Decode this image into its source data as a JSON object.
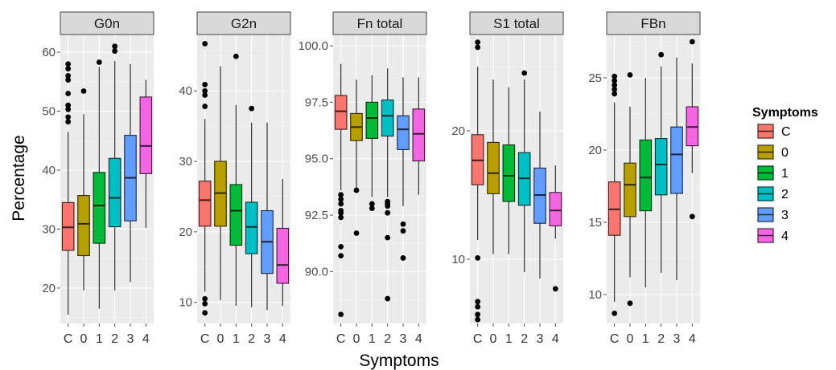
{
  "chart_data": {
    "type": "box",
    "xlabel": "Symptoms",
    "ylabel": "Percentage",
    "categories": [
      "C",
      "0",
      "1",
      "2",
      "3",
      "4"
    ],
    "legend": {
      "title": "Symptoms",
      "position": "right",
      "items": [
        {
          "label": "C",
          "color": "#F8766D"
        },
        {
          "label": "0",
          "color": "#B79F00"
        },
        {
          "label": "1",
          "color": "#00BA38"
        },
        {
          "label": "2",
          "color": "#00BFC4"
        },
        {
          "label": "3",
          "color": "#619CFF"
        },
        {
          "label": "4",
          "color": "#F564E3"
        }
      ]
    },
    "panels": [
      {
        "title": "G0n",
        "ylim": [
          14,
          63
        ],
        "yticks": [
          20,
          30,
          40,
          50,
          60
        ],
        "boxes": [
          {
            "category": "C",
            "min": 15.5,
            "q1": 26.4,
            "median": 30.3,
            "q3": 34.5,
            "max": 46.5,
            "outliers": [
              48.2,
              49.0,
              50.3,
              51.0,
              53.0,
              55.3,
              56.0,
              57.2,
              58.0
            ]
          },
          {
            "category": "0",
            "min": 19.6,
            "q1": 25.5,
            "median": 30.9,
            "q3": 35.7,
            "max": 49.5,
            "outliers": [
              53.4
            ]
          },
          {
            "category": "1",
            "min": 16.5,
            "q1": 27.6,
            "median": 34.0,
            "q3": 39.6,
            "max": 57.5,
            "outliers": [
              58.3
            ]
          },
          {
            "category": "2",
            "min": 19.6,
            "q1": 30.4,
            "median": 35.3,
            "q3": 42.0,
            "max": 58.5,
            "outliers": [
              60.2,
              61.0
            ]
          },
          {
            "category": "3",
            "min": 21.0,
            "q1": 31.4,
            "median": 38.7,
            "q3": 45.9,
            "max": 58.0,
            "outliers": []
          },
          {
            "category": "4",
            "min": 30.2,
            "q1": 39.4,
            "median": 44.1,
            "q3": 52.4,
            "max": 55.3,
            "outliers": []
          }
        ]
      },
      {
        "title": "G2n",
        "ylim": [
          7,
          48
        ],
        "yticks": [
          10,
          20,
          30,
          40
        ],
        "boxes": [
          {
            "category": "C",
            "min": 11.5,
            "q1": 20.8,
            "median": 24.5,
            "q3": 27.2,
            "max": 36.0,
            "outliers": [
              8.5,
              9.8,
              10.5,
              37.8,
              39.4,
              40.0,
              40.9,
              46.7
            ]
          },
          {
            "category": "0",
            "min": 10.3,
            "q1": 20.8,
            "median": 25.5,
            "q3": 30.0,
            "max": 43.5,
            "outliers": []
          },
          {
            "category": "1",
            "min": 9.5,
            "q1": 18.1,
            "median": 23.0,
            "q3": 26.7,
            "max": 38.0,
            "outliers": [
              44.9
            ]
          },
          {
            "category": "2",
            "min": 9.3,
            "q1": 16.9,
            "median": 20.7,
            "q3": 24.2,
            "max": 35.5,
            "outliers": [
              37.5
            ]
          },
          {
            "category": "3",
            "min": 8.9,
            "q1": 14.1,
            "median": 18.6,
            "q3": 23.0,
            "max": 35.5,
            "outliers": []
          },
          {
            "category": "4",
            "min": 9.5,
            "q1": 12.7,
            "median": 15.3,
            "q3": 20.5,
            "max": 27.5,
            "outliers": []
          }
        ]
      },
      {
        "title": "Fn total",
        "ylim": [
          87.7,
          100.5
        ],
        "yticks": [
          90.0,
          92.5,
          95.0,
          97.5,
          100.0
        ],
        "ytick_labels": [
          "90.0",
          "92.5",
          "95.0",
          "97.5",
          "100.0"
        ],
        "boxes": [
          {
            "category": "C",
            "min": 93.6,
            "q1": 96.3,
            "median": 97.1,
            "q3": 97.8,
            "max": 99.2,
            "outliers": [
              88.1,
              90.7,
              91.1,
              92.4,
              92.6,
              92.7,
              93.0,
              93.2,
              93.4
            ]
          },
          {
            "category": "0",
            "min": 93.7,
            "q1": 95.8,
            "median": 96.4,
            "q3": 97.0,
            "max": 98.5,
            "outliers": [
              91.7,
              93.6
            ]
          },
          {
            "category": "1",
            "min": 93.3,
            "q1": 95.9,
            "median": 96.8,
            "q3": 97.5,
            "max": 98.7,
            "outliers": [
              92.8,
              93.0
            ]
          },
          {
            "category": "2",
            "min": 93.3,
            "q1": 96.0,
            "median": 96.9,
            "q3": 97.6,
            "max": 99.0,
            "outliers": [
              88.8,
              91.5,
              92.6,
              92.9,
              93.0,
              93.1
            ]
          },
          {
            "category": "3",
            "min": 92.9,
            "q1": 95.4,
            "median": 96.3,
            "q3": 96.9,
            "max": 98.6,
            "outliers": [
              90.6,
              91.8,
              92.1
            ]
          },
          {
            "category": "4",
            "min": 93.4,
            "q1": 94.9,
            "median": 96.1,
            "q3": 97.2,
            "max": 98.6,
            "outliers": []
          }
        ]
      },
      {
        "title": "S1 total",
        "ylim": [
          5,
          27.5
        ],
        "yticks": [
          10,
          20
        ],
        "boxes": [
          {
            "category": "C",
            "min": 11.5,
            "q1": 15.8,
            "median": 17.7,
            "q3": 19.7,
            "max": 25.0,
            "outliers": [
              5.3,
              5.7,
              6.3,
              6.7,
              10.1,
              26.5,
              26.9
            ]
          },
          {
            "category": "0",
            "min": 10.4,
            "q1": 15.1,
            "median": 16.7,
            "q3": 19.1,
            "max": 24.0,
            "outliers": []
          },
          {
            "category": "1",
            "min": 10.4,
            "q1": 14.5,
            "median": 16.5,
            "q3": 18.9,
            "max": 23.4,
            "outliers": []
          },
          {
            "category": "2",
            "min": 9.0,
            "q1": 14.2,
            "median": 16.3,
            "q3": 18.3,
            "max": 24.0,
            "outliers": [
              24.5
            ]
          },
          {
            "category": "3",
            "min": 8.5,
            "q1": 12.8,
            "median": 15.0,
            "q3": 17.1,
            "max": 21.5,
            "outliers": []
          },
          {
            "category": "4",
            "min": 11.6,
            "q1": 12.6,
            "median": 13.8,
            "q3": 15.2,
            "max": 17.3,
            "outliers": [
              7.7
            ]
          }
        ]
      },
      {
        "title": "FBn",
        "ylim": [
          8,
          28
        ],
        "yticks": [
          10,
          15,
          20,
          25
        ],
        "boxes": [
          {
            "category": "C",
            "min": 9.5,
            "q1": 14.1,
            "median": 15.9,
            "q3": 17.8,
            "max": 23.3,
            "outliers": [
              8.7,
              23.9,
              24.2,
              24.5,
              24.8,
              25.1
            ]
          },
          {
            "category": "0",
            "min": 11.2,
            "q1": 15.4,
            "median": 17.6,
            "q3": 19.1,
            "max": 23.0,
            "outliers": [
              9.4,
              25.2
            ]
          },
          {
            "category": "1",
            "min": 10.5,
            "q1": 15.8,
            "median": 18.1,
            "q3": 20.7,
            "max": 25.0,
            "outliers": []
          },
          {
            "category": "2",
            "min": 11.5,
            "q1": 16.9,
            "median": 19.0,
            "q3": 20.8,
            "max": 25.8,
            "outliers": [
              26.6
            ]
          },
          {
            "category": "3",
            "min": 11.0,
            "q1": 17.0,
            "median": 19.7,
            "q3": 21.6,
            "max": 26.4,
            "outliers": []
          },
          {
            "category": "4",
            "min": 18.4,
            "q1": 20.3,
            "median": 21.6,
            "q3": 23.0,
            "max": 26.0,
            "outliers": [
              15.4,
              27.5
            ]
          }
        ]
      }
    ]
  }
}
